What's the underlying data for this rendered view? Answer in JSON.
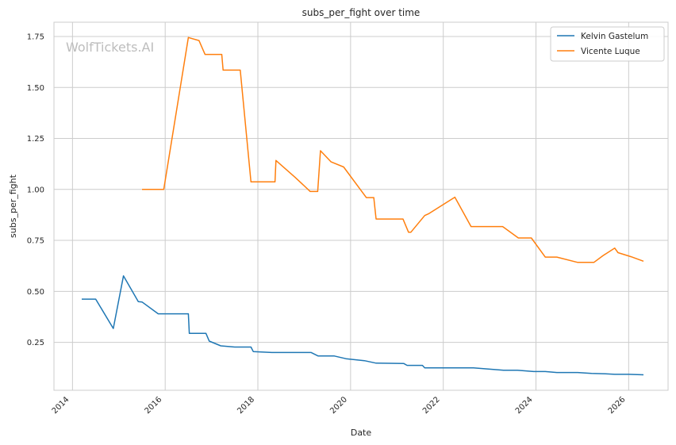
{
  "chart_data": {
    "type": "line",
    "title": "subs_per_fight over time",
    "xlabel": "Date",
    "ylabel": "subs_per_fight",
    "watermark": "WolfTickets.AI",
    "xlim": [
      2013.6,
      2026.85
    ],
    "ylim": [
      0.015,
      1.82
    ],
    "xticks": [
      2014,
      2016,
      2018,
      2020,
      2022,
      2024,
      2026
    ],
    "xtick_labels": [
      "2014",
      "2016",
      "2018",
      "2020",
      "2022",
      "2024",
      "2026"
    ],
    "yticks": [
      0.25,
      0.5,
      0.75,
      1.0,
      1.25,
      1.5,
      1.75
    ],
    "ytick_labels": [
      "0.25",
      "0.50",
      "0.75",
      "1.00",
      "1.25",
      "1.50",
      "1.75"
    ],
    "grid": true,
    "legend_position": "top-right",
    "series": [
      {
        "name": "Kelvin Gastelum",
        "color": "#1f77b4",
        "points": [
          [
            2014.2,
            0.462
          ],
          [
            2014.5,
            0.462
          ],
          [
            2014.88,
            0.318
          ],
          [
            2015.1,
            0.576
          ],
          [
            2015.42,
            0.45
          ],
          [
            2015.5,
            0.448
          ],
          [
            2015.85,
            0.39
          ],
          [
            2016.5,
            0.39
          ],
          [
            2016.52,
            0.294
          ],
          [
            2016.88,
            0.294
          ],
          [
            2016.95,
            0.256
          ],
          [
            2017.2,
            0.233
          ],
          [
            2017.5,
            0.227
          ],
          [
            2017.85,
            0.227
          ],
          [
            2017.9,
            0.205
          ],
          [
            2018.3,
            0.2
          ],
          [
            2019.15,
            0.2
          ],
          [
            2019.3,
            0.183
          ],
          [
            2019.65,
            0.183
          ],
          [
            2019.9,
            0.17
          ],
          [
            2020.3,
            0.16
          ],
          [
            2020.55,
            0.148
          ],
          [
            2021.15,
            0.146
          ],
          [
            2021.22,
            0.137
          ],
          [
            2021.55,
            0.137
          ],
          [
            2021.6,
            0.125
          ],
          [
            2022.65,
            0.125
          ],
          [
            2023.3,
            0.113
          ],
          [
            2023.6,
            0.113
          ],
          [
            2023.95,
            0.107
          ],
          [
            2024.2,
            0.107
          ],
          [
            2024.45,
            0.102
          ],
          [
            2024.9,
            0.102
          ],
          [
            2025.2,
            0.098
          ],
          [
            2025.5,
            0.096
          ],
          [
            2025.7,
            0.093
          ],
          [
            2026.0,
            0.093
          ],
          [
            2026.32,
            0.091
          ]
        ]
      },
      {
        "name": "Vicente Luque",
        "color": "#ff7f0e",
        "points": [
          [
            2015.5,
            1.0
          ],
          [
            2015.97,
            1.0
          ],
          [
            2016.5,
            1.745
          ],
          [
            2016.73,
            1.73
          ],
          [
            2016.86,
            1.662
          ],
          [
            2017.22,
            1.662
          ],
          [
            2017.25,
            1.585
          ],
          [
            2017.62,
            1.585
          ],
          [
            2017.85,
            1.037
          ],
          [
            2018.37,
            1.037
          ],
          [
            2018.39,
            1.142
          ],
          [
            2018.8,
            1.06
          ],
          [
            2019.13,
            0.99
          ],
          [
            2019.29,
            0.99
          ],
          [
            2019.35,
            1.19
          ],
          [
            2019.58,
            1.135
          ],
          [
            2019.85,
            1.11
          ],
          [
            2020.34,
            0.96
          ],
          [
            2020.5,
            0.96
          ],
          [
            2020.55,
            0.855
          ],
          [
            2021.13,
            0.855
          ],
          [
            2021.25,
            0.79
          ],
          [
            2021.3,
            0.79
          ],
          [
            2021.6,
            0.872
          ],
          [
            2021.68,
            0.88
          ],
          [
            2022.25,
            0.962
          ],
          [
            2022.6,
            0.818
          ],
          [
            2023.28,
            0.818
          ],
          [
            2023.62,
            0.762
          ],
          [
            2023.9,
            0.762
          ],
          [
            2024.2,
            0.668
          ],
          [
            2024.45,
            0.668
          ],
          [
            2024.9,
            0.642
          ],
          [
            2025.25,
            0.642
          ],
          [
            2025.45,
            0.676
          ],
          [
            2025.7,
            0.712
          ],
          [
            2025.77,
            0.69
          ],
          [
            2026.05,
            0.67
          ],
          [
            2026.32,
            0.648
          ]
        ]
      }
    ]
  }
}
